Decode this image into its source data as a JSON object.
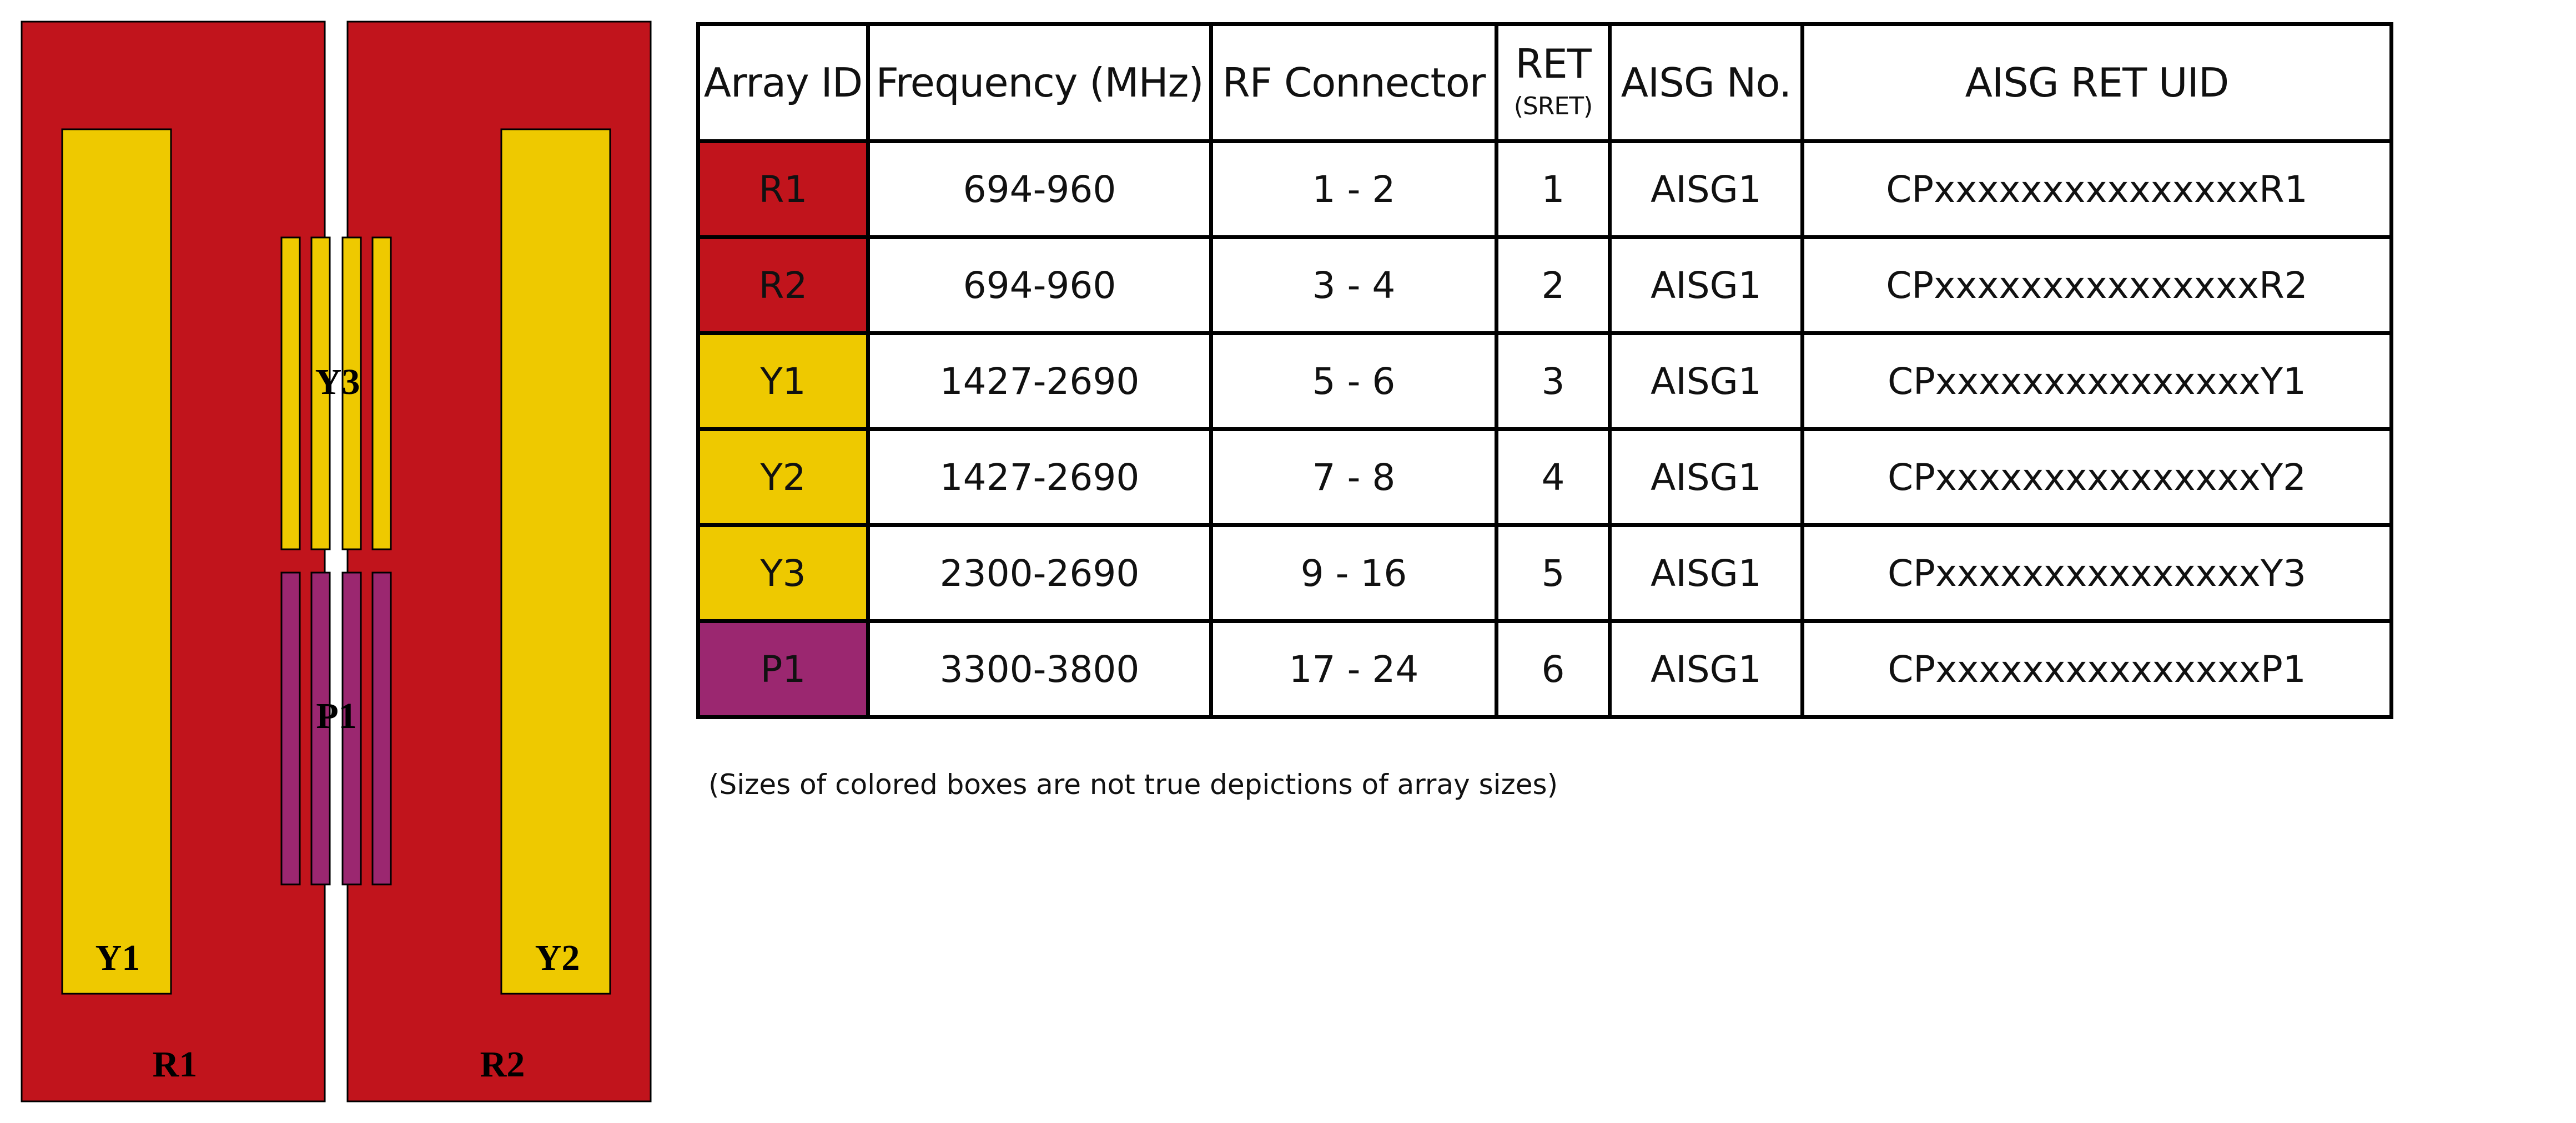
{
  "colors": {
    "red": "#C1141C",
    "yellow": "#EEC900",
    "purple": "#9B2770",
    "border": "#000000"
  },
  "diagram": {
    "labels": {
      "R1": "R1",
      "R2": "R2",
      "Y1": "Y1",
      "Y2": "Y2",
      "Y3": "Y3",
      "P1": "P1"
    }
  },
  "table": {
    "headers": {
      "array_id": "Array ID",
      "frequency": "Frequency (MHz)",
      "rf_connector": "RF Connector",
      "ret": "RET",
      "ret_sub": "(SRET)",
      "aisg_no": "AISG No.",
      "aisg_ret_uid": "AISG RET UID"
    },
    "rows": [
      {
        "array_id": "R1",
        "color": "#C1141C",
        "frequency": "694-960",
        "rf_connector": "1 - 2",
        "ret": "1",
        "aisg_no": "AISG1",
        "uid": "CPxxxxxxxxxxxxxxxR1"
      },
      {
        "array_id": "R2",
        "color": "#C1141C",
        "frequency": "694-960",
        "rf_connector": "3 - 4",
        "ret": "2",
        "aisg_no": "AISG1",
        "uid": "CPxxxxxxxxxxxxxxxR2"
      },
      {
        "array_id": "Y1",
        "color": "#EEC900",
        "frequency": "1427-2690",
        "rf_connector": "5 - 6",
        "ret": "3",
        "aisg_no": "AISG1",
        "uid": "CPxxxxxxxxxxxxxxxY1"
      },
      {
        "array_id": "Y2",
        "color": "#EEC900",
        "frequency": "1427-2690",
        "rf_connector": "7 - 8",
        "ret": "4",
        "aisg_no": "AISG1",
        "uid": "CPxxxxxxxxxxxxxxxY2"
      },
      {
        "array_id": "Y3",
        "color": "#EEC900",
        "frequency": "2300-2690",
        "rf_connector": "9 - 16",
        "ret": "5",
        "aisg_no": "AISG1",
        "uid": "CPxxxxxxxxxxxxxxxY3"
      },
      {
        "array_id": "P1",
        "color": "#9B2770",
        "frequency": "3300-3800",
        "rf_connector": "17 - 24",
        "ret": "6",
        "aisg_no": "AISG1",
        "uid": "CPxxxxxxxxxxxxxxxP1"
      }
    ]
  },
  "note": "(Sizes of colored boxes are not true depictions of array sizes)"
}
